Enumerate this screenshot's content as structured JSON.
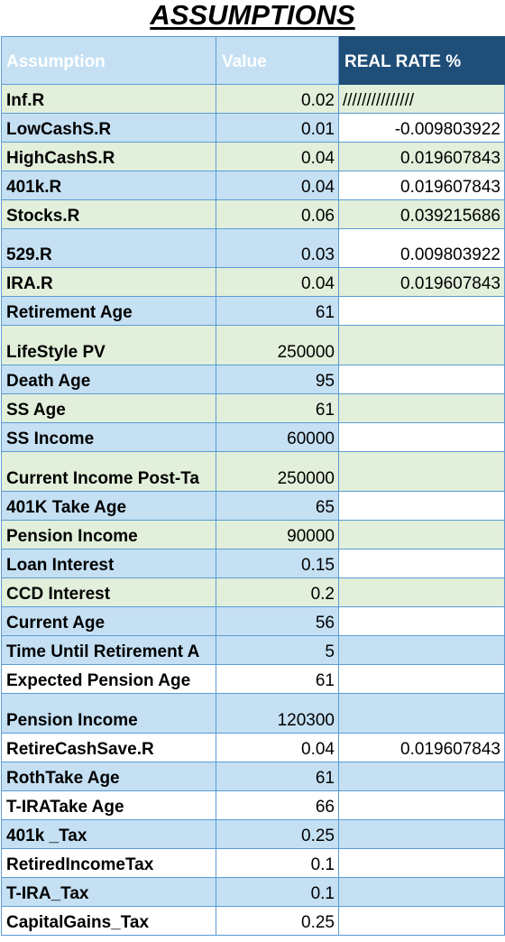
{
  "title": "ASSUMPTIONS",
  "headers": [
    "Assumption",
    "Value",
    "REAL RATE %"
  ],
  "rows": [
    {
      "label": "Inf.R",
      "value": "0.02",
      "real": "///////////////"
    },
    {
      "label": "LowCashS.R",
      "value": "0.01",
      "real": "-0.009803922"
    },
    {
      "label": "HighCashS.R",
      "value": "0.04",
      "real": "0.019607843"
    },
    {
      "label": "401k.R",
      "value": "0.04",
      "real": "0.019607843"
    },
    {
      "label": "Stocks.R",
      "value": "0.06",
      "real": "0.039215686"
    },
    {
      "label": "529.R",
      "value": "0.03",
      "real": "0.009803922"
    },
    {
      "label": "IRA.R",
      "value": "0.04",
      "real": "0.019607843"
    },
    {
      "label": "Retirement Age",
      "value": "61",
      "real": ""
    },
    {
      "label": "LifeStyle PV",
      "value": "250000",
      "real": ""
    },
    {
      "label": "Death Age",
      "value": "95",
      "real": ""
    },
    {
      "label": "SS Age",
      "value": "61",
      "real": ""
    },
    {
      "label": "SS Income",
      "value": "60000",
      "real": ""
    },
    {
      "label": "Current Income Post-Ta",
      "value": "250000",
      "real": ""
    },
    {
      "label": "401K Take Age",
      "value": "65",
      "real": ""
    },
    {
      "label": "Pension Income",
      "value": "90000",
      "real": ""
    },
    {
      "label": "Loan Interest",
      "value": "0.15",
      "real": ""
    },
    {
      "label": "CCD Interest",
      "value": "0.2",
      "real": ""
    },
    {
      "label": "Current Age",
      "value": "56",
      "real": ""
    },
    {
      "label": "Time Until Retirement A",
      "value": "5",
      "real": ""
    },
    {
      "label": "Expected Pension Age",
      "value": "61",
      "real": ""
    },
    {
      "label": "Pension Income",
      "value": "120300",
      "real": ""
    },
    {
      "label": "RetireCashSave.R",
      "value": "0.04",
      "real": "0.019607843"
    },
    {
      "label": "RothTake Age",
      "value": "61",
      "real": ""
    },
    {
      "label": "T-IRATake Age",
      "value": "66",
      "real": ""
    },
    {
      "label": "401k _Tax",
      "value": "0.25",
      "real": ""
    },
    {
      "label": "RetiredIncomeTax",
      "value": "0.1",
      "real": ""
    },
    {
      "label": "T-IRA_Tax",
      "value": "0.1",
      "real": ""
    },
    {
      "label": "CapitalGains_Tax",
      "value": "0.25",
      "real": ""
    }
  ]
}
